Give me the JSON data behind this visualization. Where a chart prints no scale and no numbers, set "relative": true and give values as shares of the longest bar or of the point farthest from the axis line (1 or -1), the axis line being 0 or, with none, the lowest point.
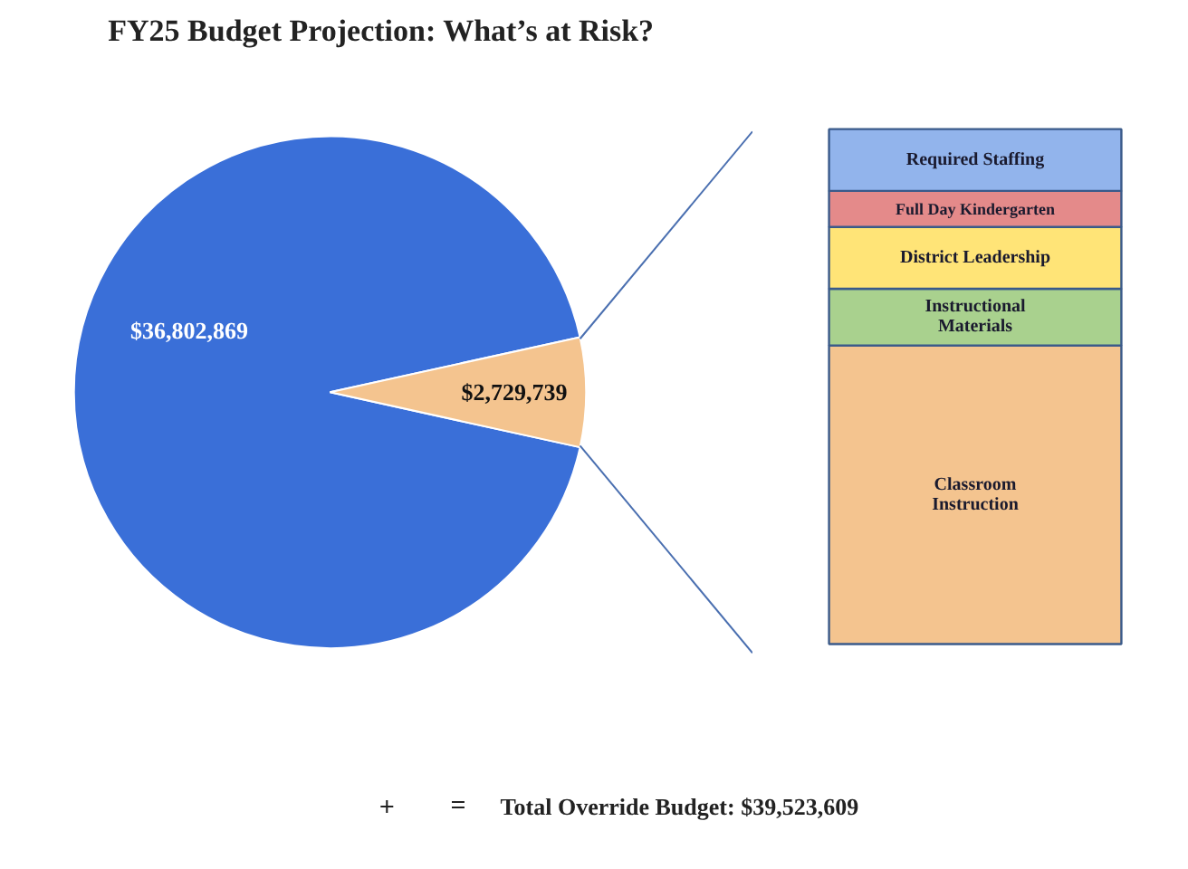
{
  "chart_data": [
    {
      "type": "pie",
      "title": "FY25 Budget Projection: What’s at Risk?",
      "categories": [
        null,
        null
      ],
      "values": [
        36802869,
        2729739
      ],
      "colors": [
        "#3a6fd8",
        "#f4c48f"
      ],
      "value_labels": [
        "$36,802,869",
        "$2,729,739"
      ],
      "annotations": [
        "+",
        "=",
        "Total Override Budget: $39,523,609"
      ]
    },
    {
      "type": "bar",
      "stacked": true,
      "relative": true,
      "categories": [
        null
      ],
      "series": [
        {
          "name": "Classroom Instruction",
          "color": "#f4c48f",
          "values": [
            0.58
          ]
        },
        {
          "name": "Instructional Materials",
          "color": "#a9d18e",
          "values": [
            0.11
          ]
        },
        {
          "name": "District Leadership",
          "color": "#ffe477",
          "values": [
            0.12
          ]
        },
        {
          "name": "Full Day Kindergarten",
          "color": "#e48a8a",
          "values": [
            0.07
          ]
        },
        {
          "name": "Required Staffing",
          "color": "#92b4ec",
          "values": [
            0.12
          ]
        }
      ]
    }
  ]
}
